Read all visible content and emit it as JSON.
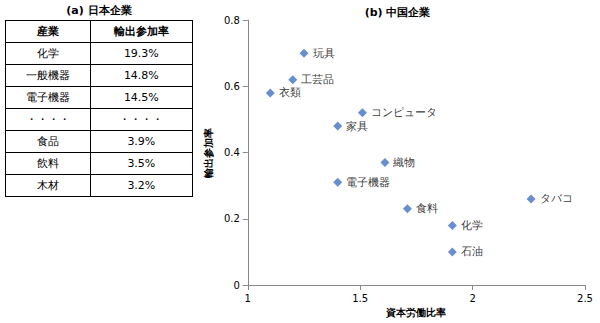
{
  "table": {
    "title": "(a) 日本企業",
    "header": [
      "産業",
      "輸出参加率"
    ],
    "rows": [
      [
        "化学",
        "19.3%"
      ],
      [
        "一般機器",
        "14.8%"
      ],
      [
        "電子機器",
        "14.5%"
      ],
      [
        "・・・・",
        "・・・・"
      ],
      [
        "食品",
        "3.9%"
      ],
      [
        "飲料",
        "3.5%"
      ],
      [
        "木材",
        "3.2%"
      ]
    ]
  },
  "chart_data": {
    "type": "scatter",
    "title": "(b) 中国企業",
    "x_label": "資本労働比率",
    "y_label": "輸出参加率",
    "labels": [
      "玩具",
      "工芸品",
      "衣類",
      "コンピュータ",
      "家具",
      "織物",
      "電子機器",
      "食料",
      "化学",
      "石油",
      "タバコ"
    ],
    "x": [
      1.25,
      1.2,
      1.1,
      1.51,
      1.4,
      1.61,
      1.4,
      1.71,
      1.91,
      1.91,
      2.26
    ],
    "values": [
      0.7,
      0.62,
      0.58,
      0.52,
      0.48,
      0.37,
      0.31,
      0.23,
      0.18,
      0.1,
      0.26
    ],
    "color": "#4472c4",
    "marker": "diamond",
    "xlim": [
      1,
      2.5
    ],
    "xticks": [
      1,
      1.5,
      2,
      2.5
    ],
    "ylim": [
      0,
      0.8
    ],
    "yticks": [
      0,
      0.2,
      0.4,
      0.6,
      0.8
    ],
    "grid": false
  }
}
